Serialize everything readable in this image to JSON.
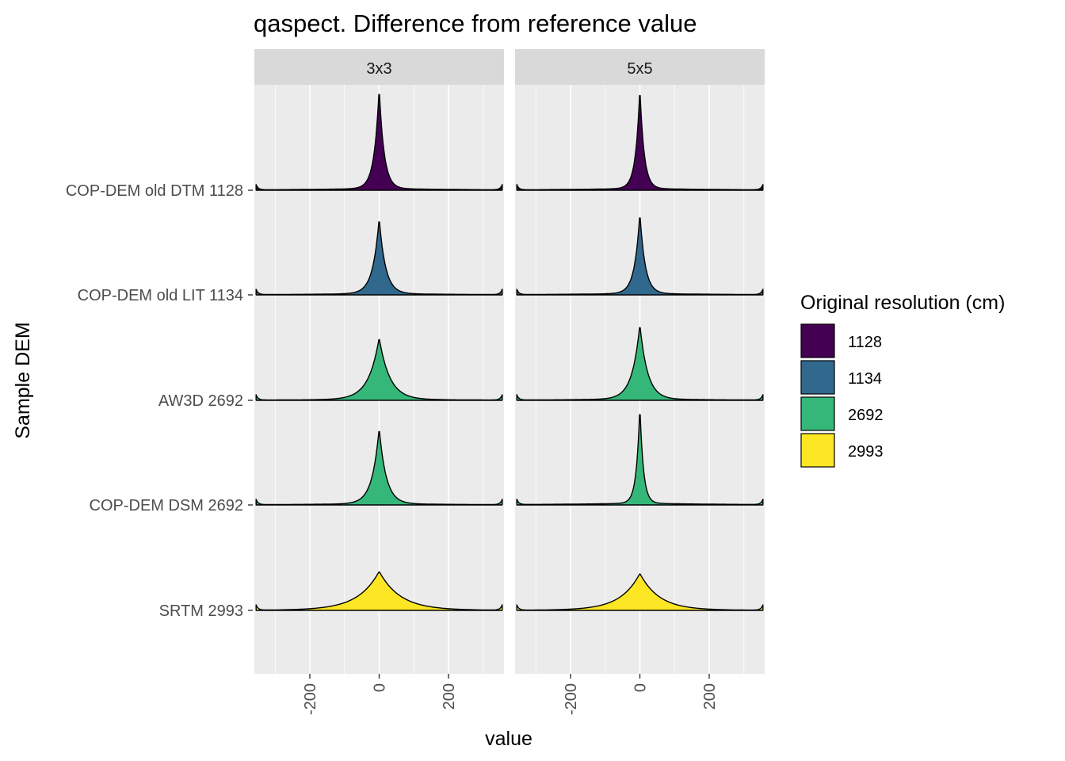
{
  "chart_data": {
    "type": "area",
    "subtype": "ridgeline-density",
    "title": "qaspect. Difference from reference value",
    "xlabel": "value",
    "ylabel": "Sample DEM",
    "xlim": [
      -360,
      360
    ],
    "x_ticks": [
      -200,
      0,
      200
    ],
    "x_tick_labels": [
      "-200",
      "0",
      "200"
    ],
    "grid": true,
    "facets": [
      "3x3",
      "5x5"
    ],
    "categories": [
      "COP-DEM old DTM 1128",
      "COP-DEM old LIT 1134",
      "AW3D 2692",
      "COP-DEM DSM 2692",
      "SRTM 2993"
    ],
    "legend": {
      "title": "Original resolution (cm)",
      "position": "right",
      "items": [
        {
          "label": "1128",
          "color": "#440154"
        },
        {
          "label": "1134",
          "color": "#31688e"
        },
        {
          "label": "2692",
          "color": "#35b779"
        },
        {
          "label": "2993",
          "color": "#fde725"
        }
      ]
    },
    "series": [
      {
        "category": "COP-DEM old DTM 1128",
        "resolution": "1128",
        "color": "#440154",
        "peak": [
          1.0,
          1.0
        ],
        "width": [
          14,
          12
        ]
      },
      {
        "category": "COP-DEM old LIT 1134",
        "resolution": "1134",
        "color": "#31688e",
        "peak": [
          0.75,
          0.8
        ],
        "width": [
          18,
          15
        ]
      },
      {
        "category": "AW3D 2692",
        "resolution": "2692",
        "color": "#35b779",
        "peak": [
          0.61,
          0.74
        ],
        "width": [
          30,
          22
        ]
      },
      {
        "category": "COP-DEM DSM 2692",
        "resolution": "2692",
        "color": "#35b779",
        "peak": [
          0.75,
          0.97
        ],
        "width": [
          20,
          10
        ]
      },
      {
        "category": "SRTM 2993",
        "resolution": "2993",
        "color": "#fde725",
        "peak": [
          0.38,
          0.36
        ],
        "width": [
          60,
          55
        ]
      }
    ]
  }
}
